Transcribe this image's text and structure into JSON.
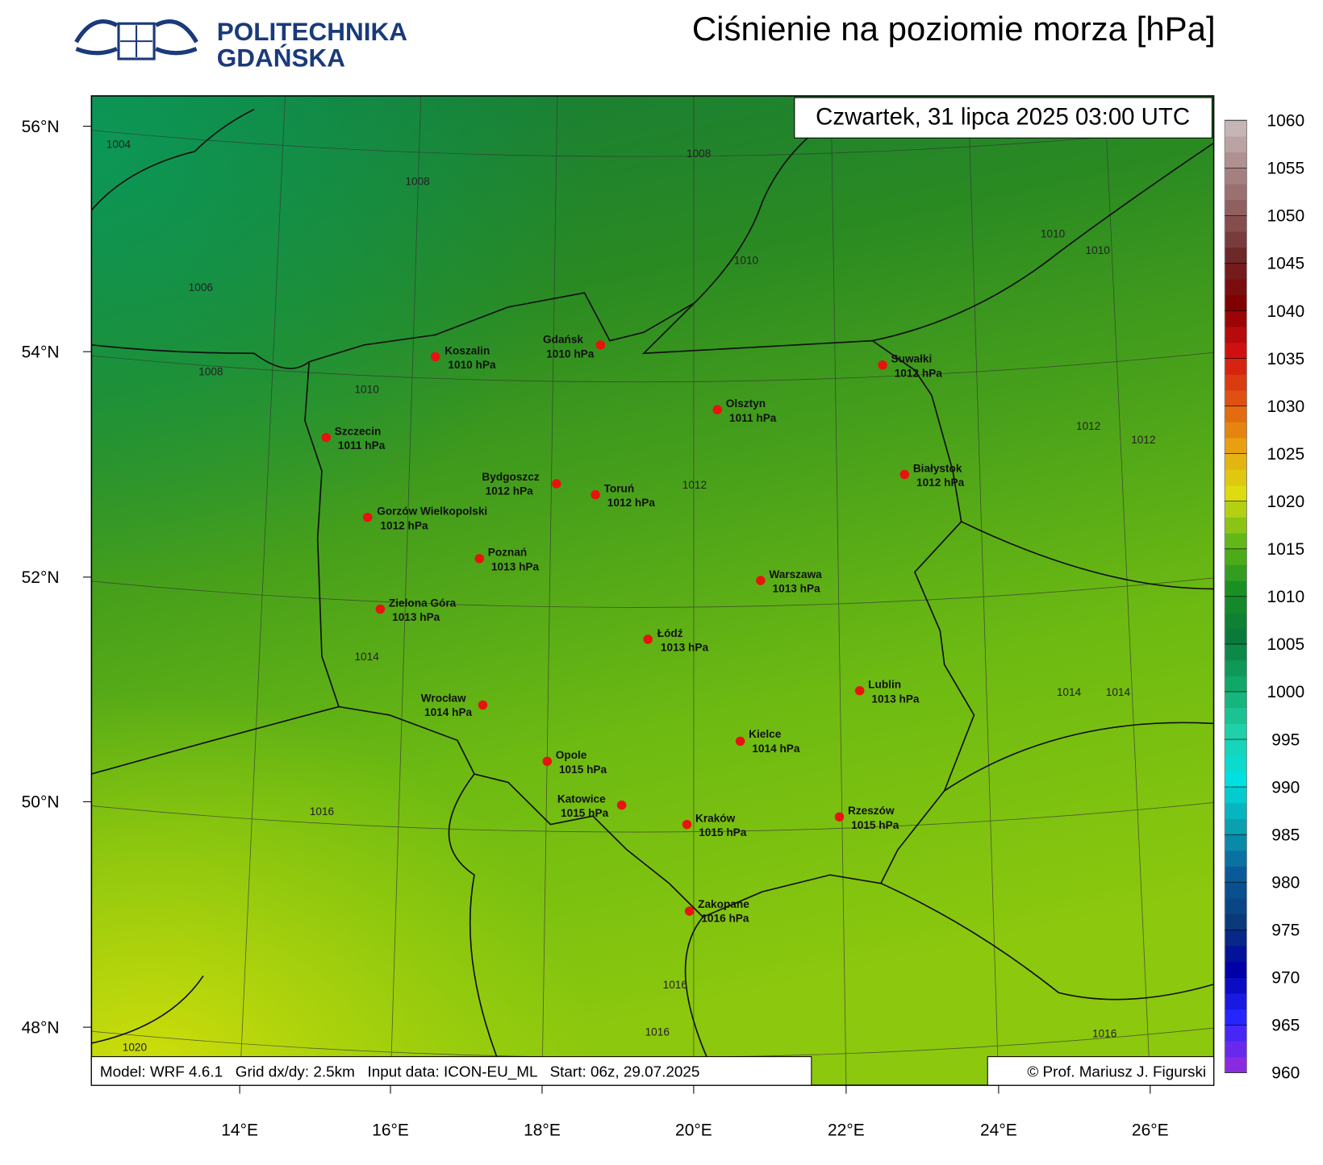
{
  "logo": {
    "line1": "POLITECHNIKA",
    "line2": "GDAŃSKA"
  },
  "title": "Ciśnienie na poziomie morza [hPa]",
  "valid_time": "Czwartek, 31 lipca 2025 03:00 UTC",
  "model_info": "Model: WRF 4.6.1   Grid dx/dy: 2.5km   Input data: ICON-EU_ML   Start: 06z, 29.07.2025",
  "copyright": "© Prof. Mariusz J. Figurski",
  "lat_labels": [
    "56°N",
    "54°N",
    "52°N",
    "50°N",
    "48°N"
  ],
  "lon_labels": [
    "14°E",
    "16°E",
    "18°E",
    "20°E",
    "22°E",
    "24°E",
    "26°E"
  ],
  "cities": [
    {
      "name": "Koszalin",
      "pressure": "1010 hPa"
    },
    {
      "name": "Gdańsk",
      "pressure": "1010 hPa"
    },
    {
      "name": "Suwałki",
      "pressure": "1012 hPa"
    },
    {
      "name": "Olsztyn",
      "pressure": "1011 hPa"
    },
    {
      "name": "Szczecin",
      "pressure": "1011 hPa"
    },
    {
      "name": "Bydgoszcz",
      "pressure": "1012 hPa"
    },
    {
      "name": "Toruń",
      "pressure": "1012 hPa"
    },
    {
      "name": "Białystok",
      "pressure": "1012 hPa"
    },
    {
      "name": "Gorzów Wielkopolski",
      "pressure": "1012 hPa"
    },
    {
      "name": "Poznań",
      "pressure": "1013 hPa"
    },
    {
      "name": "Warszawa",
      "pressure": "1013 hPa"
    },
    {
      "name": "Zielona Góra",
      "pressure": "1013 hPa"
    },
    {
      "name": "Łódź",
      "pressure": "1013 hPa"
    },
    {
      "name": "Lublin",
      "pressure": "1013 hPa"
    },
    {
      "name": "Wrocław",
      "pressure": "1014 hPa"
    },
    {
      "name": "Kielce",
      "pressure": "1014 hPa"
    },
    {
      "name": "Opole",
      "pressure": "1015 hPa"
    },
    {
      "name": "Katowice",
      "pressure": "1015 hPa"
    },
    {
      "name": "Rzeszów",
      "pressure": "1015 hPa"
    },
    {
      "name": "Kraków",
      "pressure": "1015 hPa"
    },
    {
      "name": "Zakopane",
      "pressure": "1016 hPa"
    }
  ],
  "contour_labels": [
    1004,
    1008,
    1008,
    1006,
    1008,
    1010,
    1010,
    1010,
    1010,
    1012,
    1012,
    1012,
    1014,
    1014,
    1014,
    1016,
    1016,
    1016,
    1016,
    1020
  ],
  "colorbar": {
    "range": [
      960,
      1060
    ],
    "ticks": [
      960,
      965,
      970,
      975,
      980,
      985,
      990,
      995,
      1000,
      1005,
      1010,
      1015,
      1020,
      1025,
      1030,
      1035,
      1040,
      1045,
      1050,
      1055,
      1060
    ]
  }
}
